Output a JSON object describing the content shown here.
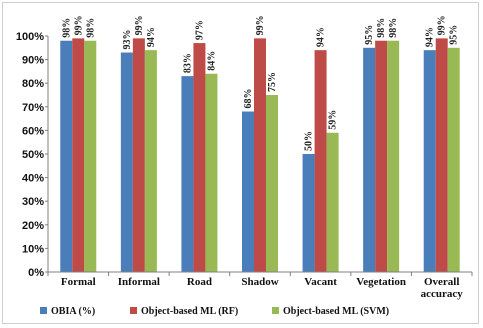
{
  "chart_data": {
    "type": "bar",
    "categories": [
      "Formal",
      "Informal",
      "Road",
      "Shadow",
      "Vacant",
      "Vegetation",
      "Overall accuracy"
    ],
    "series": [
      {
        "name": "OBIA (%)",
        "values": [
          98,
          93,
          83,
          68,
          50,
          95,
          94
        ],
        "color": "#4a7ebb"
      },
      {
        "name": "Object-based ML (RF)",
        "values": [
          99,
          99,
          97,
          99,
          94,
          98,
          99
        ],
        "color": "#be4b48"
      },
      {
        "name": "Object-based ML (SVM)",
        "values": [
          98,
          94,
          84,
          75,
          59,
          98,
          95
        ],
        "color": "#98b954"
      }
    ],
    "y_ticks": [
      "0%",
      "10%",
      "20%",
      "30%",
      "40%",
      "50%",
      "60%",
      "70%",
      "80%",
      "90%",
      "100%"
    ],
    "ylim": [
      0,
      100
    ],
    "data_label_suffix": "%",
    "grid": false,
    "legend": "bottom",
    "title": "",
    "xlabel": "",
    "ylabel": ""
  }
}
